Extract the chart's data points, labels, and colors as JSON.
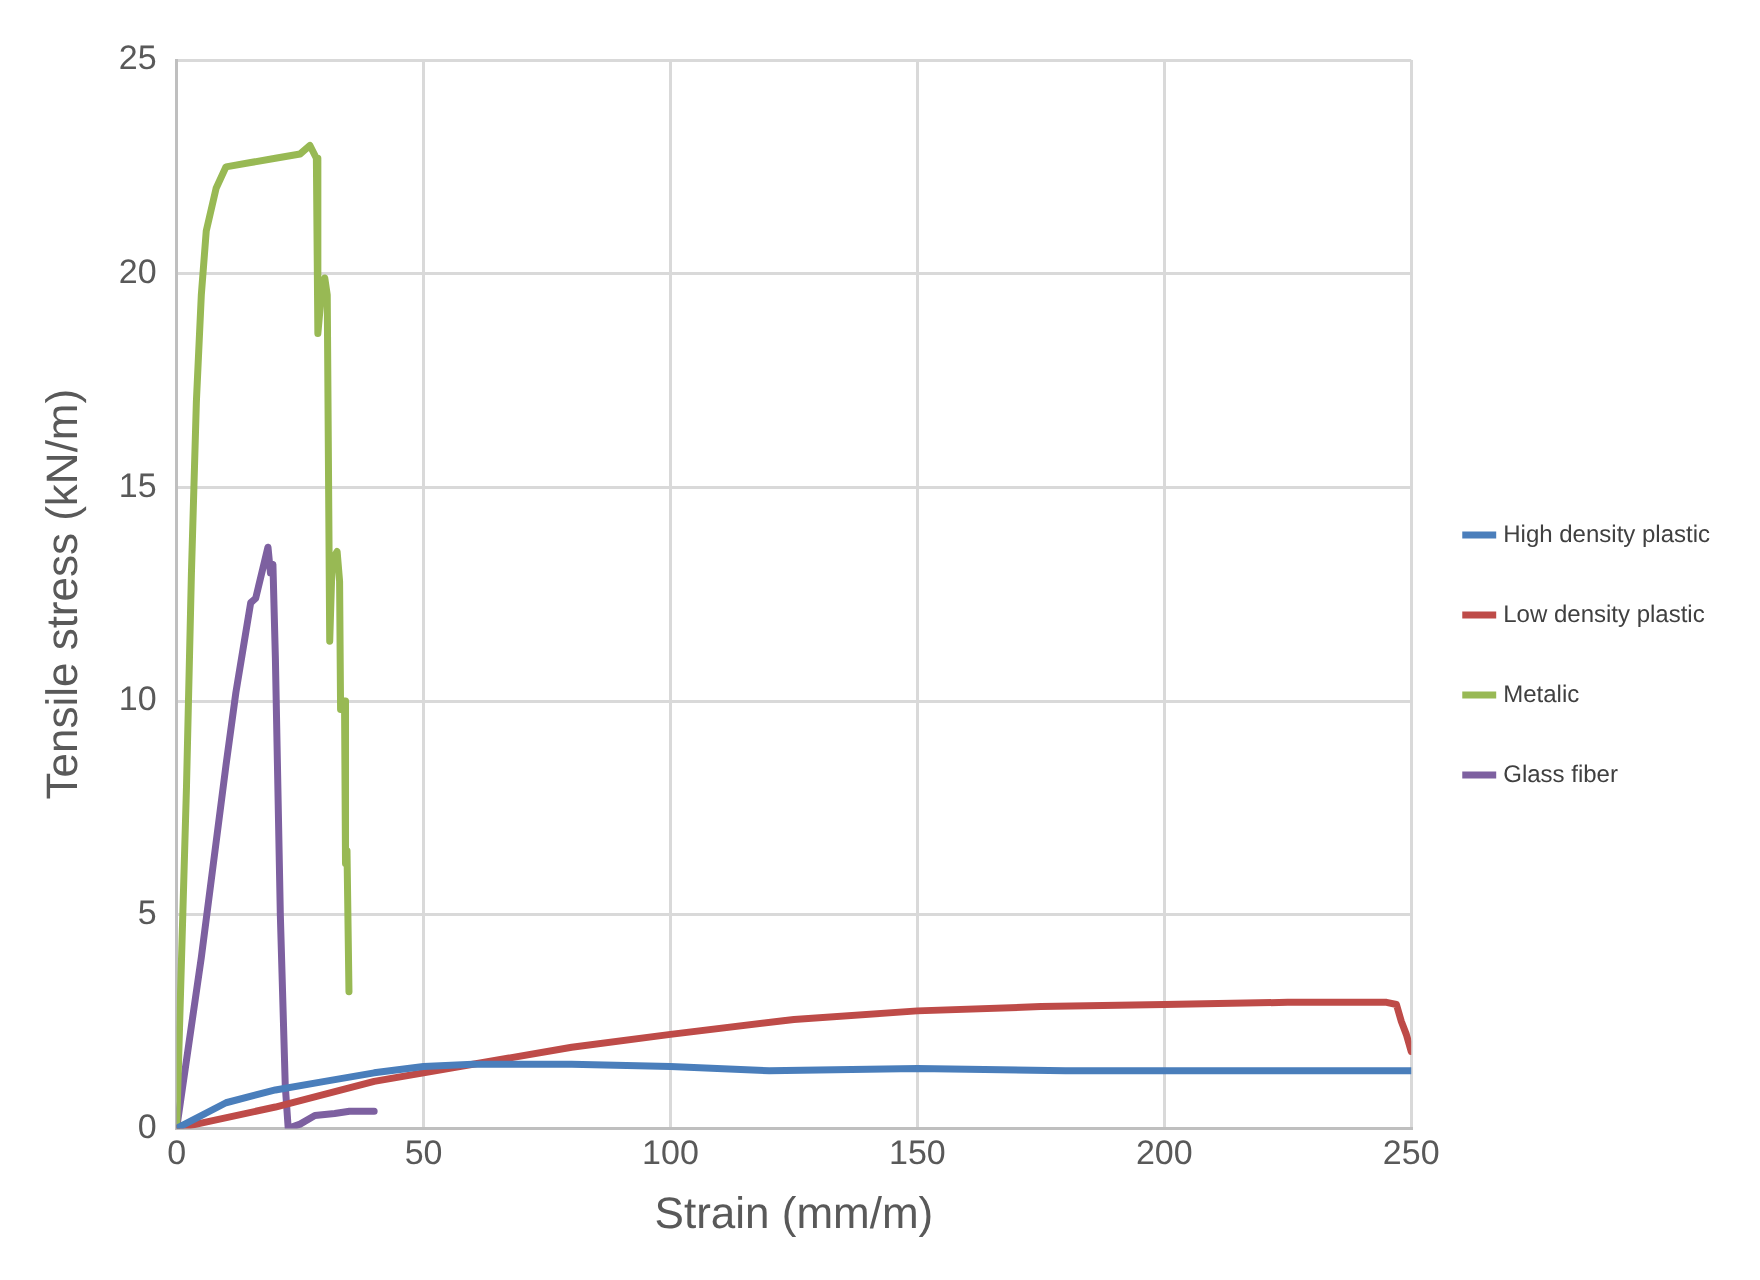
{
  "chart_data": {
    "type": "line",
    "xlabel": "Strain (mm/m)",
    "ylabel": "Tensile stress (kN/m)",
    "xlim": [
      0,
      250
    ],
    "xticks": [
      0,
      50,
      100,
      150,
      200,
      250
    ],
    "ylim": [
      0,
      25
    ],
    "yticks": [
      0,
      5,
      10,
      15,
      20,
      25
    ],
    "grid": true,
    "legend": "right",
    "marker": "none",
    "line_style": "solid",
    "series": [
      {
        "name": "High density plastic",
        "color": "#4a7ebb",
        "x": [
          0,
          10,
          20,
          30,
          40,
          50,
          60,
          80,
          100,
          120,
          150,
          180,
          200,
          250
        ],
        "values": [
          0,
          0.6,
          0.9,
          1.1,
          1.3,
          1.45,
          1.5,
          1.5,
          1.45,
          1.35,
          1.4,
          1.35,
          1.35,
          1.35
        ]
      },
      {
        "name": "Low density plastic",
        "color": "#be4b48",
        "x": [
          0,
          20,
          40,
          60,
          80,
          100,
          125,
          150,
          175,
          200,
          225,
          245,
          247,
          248,
          249,
          250
        ],
        "values": [
          0,
          0.5,
          1.1,
          1.5,
          1.9,
          2.2,
          2.55,
          2.75,
          2.85,
          2.9,
          2.95,
          2.95,
          2.9,
          2.5,
          2.2,
          1.8
        ]
      },
      {
        "name": "Metalic",
        "color": "#98b954",
        "x": [
          0,
          2,
          3,
          4,
          5,
          6,
          8,
          10,
          15,
          20,
          25,
          27,
          28.3,
          28.6,
          29.3,
          30,
          30.5,
          31,
          31.5,
          32.5,
          33,
          33.2,
          34,
          34.2,
          34.5,
          34.9
        ],
        "values": [
          0,
          8,
          13,
          17,
          19.5,
          21,
          22,
          22.5,
          22.6,
          22.7,
          22.8,
          23,
          22.7,
          18.6,
          19.5,
          19.9,
          19.5,
          11.4,
          13.3,
          13.5,
          12.8,
          9.8,
          10,
          6.2,
          6.5,
          3.2
        ]
      },
      {
        "name": "Glass fiber",
        "color": "#7d60a0",
        "x": [
          0,
          5,
          10,
          12,
          14,
          15,
          16,
          18.5,
          19,
          19.5,
          20,
          21,
          22,
          22.6,
          25,
          28,
          32,
          35,
          40
        ],
        "values": [
          0,
          4,
          8.5,
          10.2,
          11.6,
          12.3,
          12.4,
          13.6,
          13,
          13.2,
          11,
          5,
          1,
          0,
          0.1,
          0.3,
          0.35,
          0.4,
          0.4
        ]
      }
    ]
  }
}
